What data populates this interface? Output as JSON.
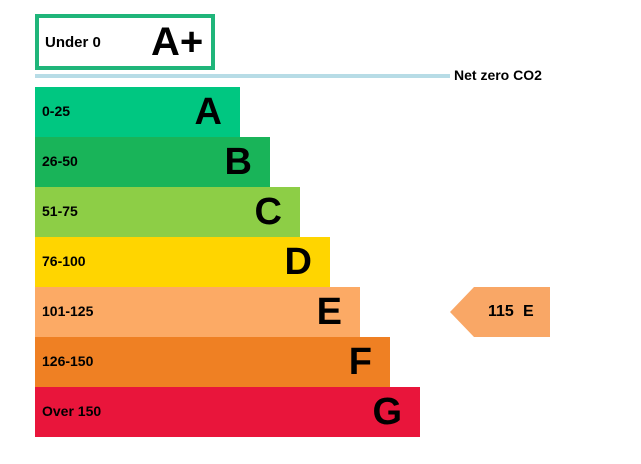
{
  "chart_data": {
    "type": "bar",
    "title": "",
    "xlabel": "",
    "ylabel": "",
    "top_band": {
      "range": "Under 0",
      "letter": "A+",
      "color": "#1fb57a"
    },
    "net_zero_label": "Net zero CO2",
    "categories": [
      "0-25",
      "26-50",
      "51-75",
      "76-100",
      "101-125",
      "126-150",
      "Over 150"
    ],
    "letters": [
      "A",
      "B",
      "C",
      "D",
      "E",
      "F",
      "G"
    ],
    "colors": [
      "#00c781",
      "#19b459",
      "#8dce46",
      "#ffd500",
      "#fcaa65",
      "#ef8023",
      "#e9153b"
    ],
    "values": [
      1,
      2,
      3,
      4,
      5,
      6,
      7
    ],
    "current_rating": {
      "value": "115",
      "letter": "E",
      "band": "E",
      "color": "#f9a766"
    }
  }
}
